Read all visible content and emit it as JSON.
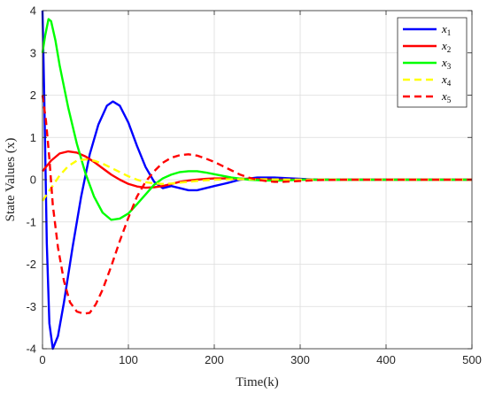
{
  "chart_data": {
    "type": "line",
    "xlabel": "Time(k)",
    "ylabel": "State Values (x)",
    "xlim": [
      0,
      500
    ],
    "ylim": [
      -4,
      4
    ],
    "xticks": [
      0,
      100,
      200,
      300,
      400,
      500
    ],
    "yticks": [
      -4,
      -3,
      -2,
      -1,
      0,
      1,
      2,
      3,
      4
    ],
    "grid": true,
    "legend_position": "top-right",
    "series": [
      {
        "name": "x1",
        "color": "#0000ff",
        "dash": "solid",
        "x": [
          0,
          2,
          5,
          8,
          12,
          18,
          25,
          35,
          45,
          55,
          65,
          75,
          82,
          90,
          100,
          110,
          120,
          130,
          140,
          150,
          160,
          170,
          180,
          190,
          200,
          215,
          230,
          250,
          270,
          290,
          320,
          350,
          400,
          450,
          500
        ],
        "y": [
          4.0,
          2.0,
          -1.5,
          -3.4,
          -4.0,
          -3.7,
          -2.9,
          -1.6,
          -0.4,
          0.6,
          1.3,
          1.75,
          1.85,
          1.75,
          1.35,
          0.8,
          0.3,
          -0.05,
          -0.2,
          -0.15,
          -0.2,
          -0.25,
          -0.25,
          -0.2,
          -0.15,
          -0.08,
          0.0,
          0.05,
          0.05,
          0.03,
          0.0,
          0.0,
          0.0,
          0.0,
          0.0
        ]
      },
      {
        "name": "x2",
        "color": "#ff0000",
        "dash": "solid",
        "x": [
          0,
          10,
          20,
          30,
          40,
          50,
          60,
          70,
          80,
          90,
          100,
          110,
          120,
          130,
          140,
          150,
          160,
          170,
          180,
          190,
          200,
          220,
          240,
          260,
          280,
          300,
          350,
          400,
          450,
          500
        ],
        "y": [
          0.2,
          0.45,
          0.62,
          0.67,
          0.64,
          0.55,
          0.42,
          0.27,
          0.12,
          0.0,
          -0.1,
          -0.16,
          -0.19,
          -0.18,
          -0.15,
          -0.1,
          -0.05,
          -0.02,
          0.0,
          0.02,
          0.03,
          0.03,
          0.02,
          0.01,
          0.0,
          0.0,
          0.0,
          0.0,
          0.0,
          0.0
        ]
      },
      {
        "name": "x3",
        "color": "#00ff00",
        "dash": "solid",
        "x": [
          0,
          3,
          7,
          10,
          15,
          20,
          30,
          40,
          50,
          60,
          70,
          80,
          90,
          100,
          110,
          120,
          130,
          140,
          150,
          160,
          170,
          180,
          190,
          200,
          210,
          220,
          240,
          260,
          280,
          300,
          350,
          400,
          450,
          500
        ],
        "y": [
          3.0,
          3.4,
          3.8,
          3.75,
          3.3,
          2.7,
          1.7,
          0.85,
          0.15,
          -0.4,
          -0.78,
          -0.95,
          -0.92,
          -0.8,
          -0.58,
          -0.35,
          -0.12,
          0.03,
          0.12,
          0.18,
          0.2,
          0.2,
          0.17,
          0.13,
          0.09,
          0.05,
          0.0,
          -0.02,
          -0.02,
          0.0,
          0.0,
          0.0,
          0.0,
          0.0
        ]
      },
      {
        "name": "x4",
        "color": "#ffff00",
        "dash": "dashed",
        "x": [
          0,
          10,
          20,
          30,
          40,
          50,
          60,
          70,
          80,
          90,
          100,
          110,
          120,
          130,
          140,
          150,
          160,
          170,
          180,
          200,
          220,
          250,
          300,
          350,
          400,
          450,
          500
        ],
        "y": [
          -0.5,
          -0.2,
          0.1,
          0.32,
          0.45,
          0.48,
          0.45,
          0.38,
          0.28,
          0.18,
          0.08,
          0.0,
          -0.06,
          -0.09,
          -0.1,
          -0.09,
          -0.07,
          -0.05,
          -0.03,
          0.0,
          0.01,
          0.01,
          0.0,
          0.0,
          0.0,
          0.0,
          0.0
        ]
      },
      {
        "name": "x5",
        "color": "#ff0000",
        "dash": "dashed",
        "x": [
          0,
          4,
          8,
          12,
          18,
          25,
          32,
          40,
          48,
          55,
          62,
          70,
          80,
          90,
          100,
          110,
          120,
          130,
          140,
          150,
          160,
          170,
          180,
          190,
          200,
          210,
          220,
          230,
          240,
          250,
          260,
          270,
          280,
          300,
          320,
          350,
          400,
          450,
          500
        ],
        "y": [
          2.0,
          1.4,
          0.5,
          -0.6,
          -1.6,
          -2.4,
          -2.9,
          -3.12,
          -3.17,
          -3.15,
          -2.95,
          -2.6,
          -2.05,
          -1.45,
          -0.9,
          -0.4,
          -0.05,
          0.2,
          0.4,
          0.52,
          0.58,
          0.6,
          0.57,
          0.5,
          0.42,
          0.32,
          0.22,
          0.12,
          0.05,
          0.0,
          -0.03,
          -0.05,
          -0.05,
          -0.03,
          -0.01,
          0.0,
          0.0,
          0.0,
          0.0
        ]
      }
    ]
  }
}
